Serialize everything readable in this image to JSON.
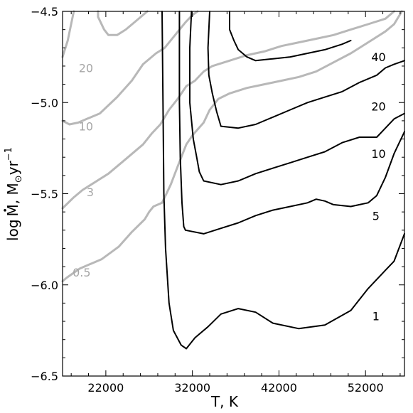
{
  "chart_data": {
    "type": "line",
    "xlabel": "T, K",
    "ylabel_parts": {
      "base": "log",
      "mdot": "M",
      "sep": ", M",
      "sun": "⊙",
      "unit": "yr",
      "exp": "−1"
    },
    "xlim": [
      17000,
      56500
    ],
    "ylim": [
      -6.5,
      -4.5
    ],
    "x_ticks": [
      22000,
      32000,
      42000,
      52000
    ],
    "x_tick_labels": [
      "22000",
      "32000",
      "42000",
      "52000"
    ],
    "y_ticks": [
      -6.5,
      -6.0,
      -5.5,
      -5.0,
      -4.5
    ],
    "y_tick_labels": [
      "−6.5",
      "−6.0",
      "−5.5",
      "−5.0",
      "−4.5"
    ],
    "grid": false,
    "colors": {
      "black_series": "#000000",
      "gray_series": "#b8b8b8",
      "gray_label": "#a6a6a6"
    },
    "series": [
      {
        "name": "1",
        "color": "black",
        "points": [
          [
            28500,
            -4.5
          ],
          [
            28600,
            -5.0
          ],
          [
            28700,
            -5.5
          ],
          [
            28900,
            -5.8
          ],
          [
            29300,
            -6.1
          ],
          [
            29800,
            -6.25
          ],
          [
            30700,
            -6.33
          ],
          [
            31300,
            -6.35
          ],
          [
            32300,
            -6.29
          ],
          [
            33800,
            -6.23
          ],
          [
            35300,
            -6.16
          ],
          [
            37300,
            -6.13
          ],
          [
            39300,
            -6.15
          ],
          [
            41300,
            -6.21
          ],
          [
            44300,
            -6.24
          ],
          [
            47300,
            -6.22
          ],
          [
            50300,
            -6.14
          ],
          [
            52300,
            -6.02
          ],
          [
            54300,
            -5.92
          ],
          [
            55300,
            -5.87
          ],
          [
            56500,
            -5.72
          ]
        ],
        "label": {
          "text": "1",
          "x": 53200,
          "y": -6.17
        }
      },
      {
        "name": "5",
        "color": "black",
        "points": [
          [
            30500,
            -4.5
          ],
          [
            30500,
            -5.0
          ],
          [
            30600,
            -5.3
          ],
          [
            30800,
            -5.55
          ],
          [
            31000,
            -5.68
          ],
          [
            31200,
            -5.7
          ],
          [
            33300,
            -5.72
          ],
          [
            35300,
            -5.69
          ],
          [
            37300,
            -5.66
          ],
          [
            39300,
            -5.62
          ],
          [
            41300,
            -5.59
          ],
          [
            43300,
            -5.57
          ],
          [
            45300,
            -5.55
          ],
          [
            46300,
            -5.53
          ],
          [
            47300,
            -5.54
          ],
          [
            48300,
            -5.56
          ],
          [
            50300,
            -5.57
          ],
          [
            52300,
            -5.55
          ],
          [
            53300,
            -5.51
          ],
          [
            54300,
            -5.41
          ],
          [
            55300,
            -5.28
          ],
          [
            56500,
            -5.16
          ]
        ],
        "label": {
          "text": "5",
          "x": 53200,
          "y": -5.62
        }
      },
      {
        "name": "10",
        "color": "black",
        "points": [
          [
            31900,
            -4.5
          ],
          [
            31700,
            -4.7
          ],
          [
            31700,
            -5.0
          ],
          [
            32100,
            -5.2
          ],
          [
            32500,
            -5.3
          ],
          [
            32800,
            -5.38
          ],
          [
            33300,
            -5.43
          ],
          [
            35300,
            -5.45
          ],
          [
            37300,
            -5.43
          ],
          [
            39300,
            -5.39
          ],
          [
            41300,
            -5.36
          ],
          [
            43300,
            -5.33
          ],
          [
            45300,
            -5.3
          ],
          [
            47300,
            -5.27
          ],
          [
            49300,
            -5.22
          ],
          [
            51300,
            -5.19
          ],
          [
            53300,
            -5.19
          ],
          [
            54300,
            -5.14
          ],
          [
            55300,
            -5.09
          ],
          [
            56500,
            -5.06
          ]
        ],
        "label": {
          "text": "10",
          "x": 53500,
          "y": -5.28
        }
      },
      {
        "name": "20",
        "color": "black",
        "points": [
          [
            34000,
            -4.5
          ],
          [
            33800,
            -4.7
          ],
          [
            33900,
            -4.85
          ],
          [
            34300,
            -4.95
          ],
          [
            34800,
            -5.05
          ],
          [
            35300,
            -5.13
          ],
          [
            37300,
            -5.14
          ],
          [
            39300,
            -5.12
          ],
          [
            41300,
            -5.08
          ],
          [
            43300,
            -5.04
          ],
          [
            45300,
            -5.0
          ],
          [
            47300,
            -4.97
          ],
          [
            49300,
            -4.94
          ],
          [
            51300,
            -4.89
          ],
          [
            53300,
            -4.85
          ],
          [
            54300,
            -4.81
          ],
          [
            55300,
            -4.79
          ],
          [
            56500,
            -4.77
          ]
        ],
        "label": {
          "text": "20",
          "x": 53500,
          "y": -5.02
        }
      },
      {
        "name": "40",
        "color": "black",
        "points": [
          [
            36300,
            -4.5
          ],
          [
            36300,
            -4.6
          ],
          [
            36800,
            -4.66
          ],
          [
            37300,
            -4.71
          ],
          [
            38300,
            -4.75
          ],
          [
            39300,
            -4.77
          ],
          [
            41300,
            -4.76
          ],
          [
            43300,
            -4.75
          ],
          [
            45300,
            -4.73
          ],
          [
            47300,
            -4.71
          ],
          [
            49300,
            -4.68
          ],
          [
            50300,
            -4.66
          ]
        ],
        "label": {
          "text": "40",
          "x": 53500,
          "y": -4.75
        }
      },
      {
        "name": "0.5",
        "color": "gray",
        "points": [
          [
            17000,
            -5.98
          ],
          [
            17500,
            -5.96
          ],
          [
            19000,
            -5.91
          ],
          [
            20000,
            -5.89
          ],
          [
            21500,
            -5.86
          ],
          [
            23500,
            -5.79
          ],
          [
            25000,
            -5.71
          ],
          [
            26500,
            -5.64
          ],
          [
            27000,
            -5.6
          ],
          [
            27500,
            -5.57
          ],
          [
            28500,
            -5.55
          ],
          [
            29500,
            -5.45
          ],
          [
            30300,
            -5.35
          ],
          [
            31300,
            -5.23
          ],
          [
            32000,
            -5.18
          ],
          [
            33300,
            -5.11
          ],
          [
            34000,
            -5.04
          ],
          [
            35000,
            -4.98
          ],
          [
            36300,
            -4.95
          ],
          [
            38300,
            -4.92
          ],
          [
            40300,
            -4.9
          ],
          [
            42300,
            -4.88
          ],
          [
            44300,
            -4.86
          ],
          [
            46300,
            -4.83
          ],
          [
            48300,
            -4.78
          ],
          [
            50300,
            -4.73
          ],
          [
            52300,
            -4.67
          ],
          [
            54300,
            -4.61
          ],
          [
            55300,
            -4.57
          ],
          [
            56200,
            -4.5
          ]
        ],
        "label": {
          "text": "0.5",
          "x": 19200,
          "y": -5.93
        }
      },
      {
        "name": "3",
        "color": "gray",
        "points": [
          [
            17000,
            -5.58
          ],
          [
            18300,
            -5.52
          ],
          [
            19300,
            -5.48
          ],
          [
            20300,
            -5.45
          ],
          [
            22300,
            -5.39
          ],
          [
            24300,
            -5.31
          ],
          [
            26300,
            -5.23
          ],
          [
            27300,
            -5.17
          ],
          [
            28300,
            -5.12
          ],
          [
            29300,
            -5.04
          ],
          [
            30300,
            -4.98
          ],
          [
            31300,
            -4.91
          ],
          [
            32300,
            -4.88
          ],
          [
            33300,
            -4.83
          ],
          [
            34300,
            -4.8
          ],
          [
            36300,
            -4.77
          ],
          [
            38300,
            -4.74
          ],
          [
            40300,
            -4.72
          ],
          [
            42300,
            -4.69
          ],
          [
            44300,
            -4.67
          ],
          [
            46300,
            -4.65
          ],
          [
            48300,
            -4.63
          ],
          [
            50300,
            -4.6
          ],
          [
            52300,
            -4.57
          ],
          [
            54300,
            -4.54
          ],
          [
            55300,
            -4.5
          ]
        ],
        "label": {
          "text": "3",
          "x": 20200,
          "y": -5.49
        }
      },
      {
        "name": "10",
        "color": "gray",
        "points": [
          [
            17000,
            -5.1
          ],
          [
            17800,
            -5.12
          ],
          [
            18800,
            -5.11
          ],
          [
            19800,
            -5.09
          ],
          [
            21300,
            -5.06
          ],
          [
            23300,
            -4.97
          ],
          [
            25000,
            -4.88
          ],
          [
            26300,
            -4.79
          ],
          [
            27800,
            -4.73
          ],
          [
            28800,
            -4.7
          ],
          [
            30000,
            -4.63
          ],
          [
            31200,
            -4.56
          ],
          [
            32000,
            -4.52
          ],
          [
            32600,
            -4.5
          ]
        ],
        "label": {
          "text": "10",
          "x": 19700,
          "y": -5.13
        }
      },
      {
        "name": "20",
        "color": "gray",
        "points": [
          [
            17000,
            -4.75
          ],
          [
            17600,
            -4.66
          ],
          [
            18300,
            -4.5
          ]
        ],
        "label": {
          "text": "20",
          "x": 19700,
          "y": -4.81
        }
      },
      {
        "name": "40",
        "color": "gray",
        "points": [
          [
            21100,
            -4.5
          ],
          [
            21100,
            -4.53
          ],
          [
            21800,
            -4.6
          ],
          [
            22300,
            -4.63
          ],
          [
            23300,
            -4.63
          ],
          [
            24300,
            -4.6
          ],
          [
            25300,
            -4.56
          ],
          [
            26300,
            -4.52
          ],
          [
            26800,
            -4.5
          ]
        ],
        "label": {
          "text": "",
          "x": 0,
          "y": 0
        }
      }
    ]
  }
}
